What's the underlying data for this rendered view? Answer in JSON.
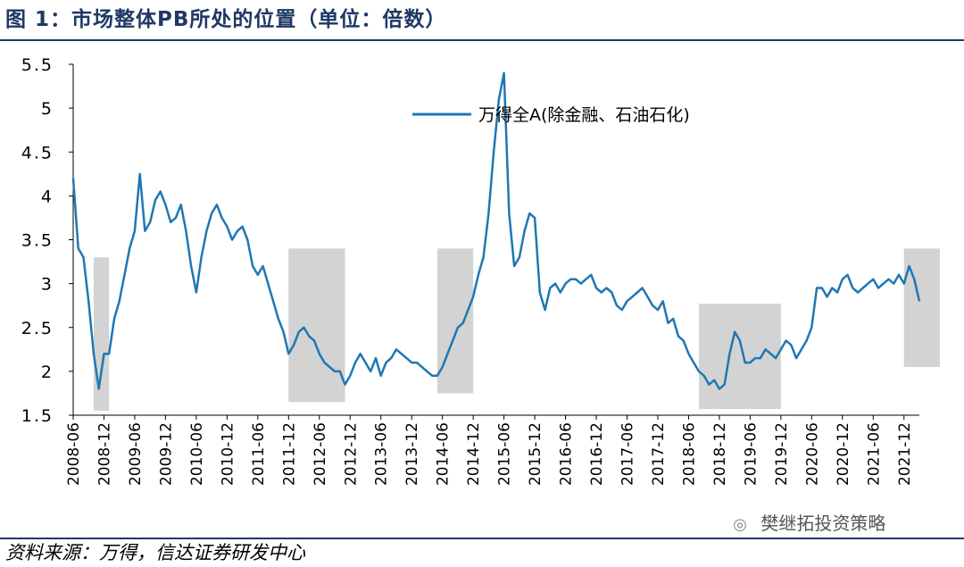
{
  "figure": {
    "title": "图 1：市场整体PB所处的位置（单位：倍数）",
    "source": "资料来源：万得，信达证券研发中心",
    "watermark": "樊继拓投资策略",
    "watermark_icon": "wechat-icon"
  },
  "colors": {
    "line": "#1f77b4",
    "shade": "#d3d3d3",
    "rule": "#1f3864"
  },
  "chart_data": {
    "type": "line",
    "title": "",
    "xlabel": "",
    "ylabel": "",
    "ylim": [
      1.5,
      5.5
    ],
    "yticks": [
      "5.5",
      "5",
      "4.5",
      "4",
      "3.5",
      "3",
      "2.5",
      "2",
      "1.5"
    ],
    "xticks": [
      "2008-06",
      "2008-12",
      "2009-06",
      "2009-12",
      "2010-06",
      "2010-12",
      "2011-06",
      "2011-12",
      "2012-06",
      "2012-12",
      "2013-06",
      "2013-12",
      "2014-06",
      "2014-12",
      "2015-06",
      "2015-12",
      "2016-06",
      "2016-12",
      "2017-06",
      "2017-12",
      "2018-06",
      "2018-12",
      "2019-06",
      "2019-12",
      "2020-06",
      "2020-12",
      "2021-06",
      "2021-12"
    ],
    "grid": false,
    "legend_position": "top-right",
    "series": [
      {
        "name": "万得全A(除金融、石油石化)",
        "points": [
          [
            "2008-06",
            4.2
          ],
          [
            "2008-07",
            3.4
          ],
          [
            "2008-08",
            3.3
          ],
          [
            "2008-09",
            2.8
          ],
          [
            "2008-10",
            2.2
          ],
          [
            "2008-11",
            1.8
          ],
          [
            "2008-12",
            2.2
          ],
          [
            "2009-01",
            2.2
          ],
          [
            "2009-02",
            2.6
          ],
          [
            "2009-03",
            2.8
          ],
          [
            "2009-04",
            3.1
          ],
          [
            "2009-05",
            3.4
          ],
          [
            "2009-06",
            3.6
          ],
          [
            "2009-07",
            4.25
          ],
          [
            "2009-08",
            3.6
          ],
          [
            "2009-09",
            3.7
          ],
          [
            "2009-10",
            3.95
          ],
          [
            "2009-11",
            4.05
          ],
          [
            "2009-12",
            3.9
          ],
          [
            "2010-01",
            3.7
          ],
          [
            "2010-02",
            3.75
          ],
          [
            "2010-03",
            3.9
          ],
          [
            "2010-04",
            3.6
          ],
          [
            "2010-05",
            3.2
          ],
          [
            "2010-06",
            2.9
          ],
          [
            "2010-07",
            3.3
          ],
          [
            "2010-08",
            3.6
          ],
          [
            "2010-09",
            3.8
          ],
          [
            "2010-10",
            3.9
          ],
          [
            "2010-11",
            3.75
          ],
          [
            "2010-12",
            3.65
          ],
          [
            "2011-01",
            3.5
          ],
          [
            "2011-02",
            3.6
          ],
          [
            "2011-03",
            3.65
          ],
          [
            "2011-04",
            3.5
          ],
          [
            "2011-05",
            3.2
          ],
          [
            "2011-06",
            3.1
          ],
          [
            "2011-07",
            3.2
          ],
          [
            "2011-08",
            3.0
          ],
          [
            "2011-09",
            2.8
          ],
          [
            "2011-10",
            2.6
          ],
          [
            "2011-11",
            2.45
          ],
          [
            "2011-12",
            2.2
          ],
          [
            "2012-01",
            2.3
          ],
          [
            "2012-02",
            2.45
          ],
          [
            "2012-03",
            2.5
          ],
          [
            "2012-04",
            2.4
          ],
          [
            "2012-05",
            2.35
          ],
          [
            "2012-06",
            2.2
          ],
          [
            "2012-07",
            2.1
          ],
          [
            "2012-08",
            2.05
          ],
          [
            "2012-09",
            2.0
          ],
          [
            "2012-10",
            2.0
          ],
          [
            "2012-11",
            1.85
          ],
          [
            "2012-12",
            1.95
          ],
          [
            "2013-01",
            2.1
          ],
          [
            "2013-02",
            2.2
          ],
          [
            "2013-03",
            2.1
          ],
          [
            "2013-04",
            2.0
          ],
          [
            "2013-05",
            2.15
          ],
          [
            "2013-06",
            1.95
          ],
          [
            "2013-07",
            2.1
          ],
          [
            "2013-08",
            2.15
          ],
          [
            "2013-09",
            2.25
          ],
          [
            "2013-10",
            2.2
          ],
          [
            "2013-11",
            2.15
          ],
          [
            "2013-12",
            2.1
          ],
          [
            "2014-01",
            2.1
          ],
          [
            "2014-02",
            2.05
          ],
          [
            "2014-03",
            2.0
          ],
          [
            "2014-04",
            1.95
          ],
          [
            "2014-05",
            1.95
          ],
          [
            "2014-06",
            2.05
          ],
          [
            "2014-07",
            2.2
          ],
          [
            "2014-08",
            2.35
          ],
          [
            "2014-09",
            2.5
          ],
          [
            "2014-10",
            2.55
          ],
          [
            "2014-11",
            2.7
          ],
          [
            "2014-12",
            2.85
          ],
          [
            "2015-01",
            3.1
          ],
          [
            "2015-02",
            3.3
          ],
          [
            "2015-03",
            3.8
          ],
          [
            "2015-04",
            4.5
          ],
          [
            "2015-05",
            5.1
          ],
          [
            "2015-06",
            5.4
          ],
          [
            "2015-07",
            3.8
          ],
          [
            "2015-08",
            3.2
          ],
          [
            "2015-09",
            3.3
          ],
          [
            "2015-10",
            3.6
          ],
          [
            "2015-11",
            3.8
          ],
          [
            "2015-12",
            3.75
          ],
          [
            "2016-01",
            2.9
          ],
          [
            "2016-02",
            2.7
          ],
          [
            "2016-03",
            2.95
          ],
          [
            "2016-04",
            3.0
          ],
          [
            "2016-05",
            2.9
          ],
          [
            "2016-06",
            3.0
          ],
          [
            "2016-07",
            3.05
          ],
          [
            "2016-08",
            3.05
          ],
          [
            "2016-09",
            3.0
          ],
          [
            "2016-10",
            3.05
          ],
          [
            "2016-11",
            3.1
          ],
          [
            "2016-12",
            2.95
          ],
          [
            "2017-01",
            2.9
          ],
          [
            "2017-02",
            2.95
          ],
          [
            "2017-03",
            2.9
          ],
          [
            "2017-04",
            2.75
          ],
          [
            "2017-05",
            2.7
          ],
          [
            "2017-06",
            2.8
          ],
          [
            "2017-07",
            2.85
          ],
          [
            "2017-08",
            2.9
          ],
          [
            "2017-09",
            2.95
          ],
          [
            "2017-10",
            2.85
          ],
          [
            "2017-11",
            2.75
          ],
          [
            "2017-12",
            2.7
          ],
          [
            "2018-01",
            2.8
          ],
          [
            "2018-02",
            2.55
          ],
          [
            "2018-03",
            2.6
          ],
          [
            "2018-04",
            2.4
          ],
          [
            "2018-05",
            2.35
          ],
          [
            "2018-06",
            2.2
          ],
          [
            "2018-07",
            2.1
          ],
          [
            "2018-08",
            2.0
          ],
          [
            "2018-09",
            1.95
          ],
          [
            "2018-10",
            1.85
          ],
          [
            "2018-11",
            1.9
          ],
          [
            "2018-12",
            1.8
          ],
          [
            "2019-01",
            1.85
          ],
          [
            "2019-02",
            2.2
          ],
          [
            "2019-03",
            2.45
          ],
          [
            "2019-04",
            2.35
          ],
          [
            "2019-05",
            2.1
          ],
          [
            "2019-06",
            2.1
          ],
          [
            "2019-07",
            2.15
          ],
          [
            "2019-08",
            2.15
          ],
          [
            "2019-09",
            2.25
          ],
          [
            "2019-10",
            2.2
          ],
          [
            "2019-11",
            2.15
          ],
          [
            "2019-12",
            2.25
          ],
          [
            "2020-01",
            2.35
          ],
          [
            "2020-02",
            2.3
          ],
          [
            "2020-03",
            2.15
          ],
          [
            "2020-04",
            2.25
          ],
          [
            "2020-05",
            2.35
          ],
          [
            "2020-06",
            2.5
          ],
          [
            "2020-07",
            2.95
          ],
          [
            "2020-08",
            2.95
          ],
          [
            "2020-09",
            2.85
          ],
          [
            "2020-10",
            2.95
          ],
          [
            "2020-11",
            2.9
          ],
          [
            "2020-12",
            3.05
          ],
          [
            "2021-01",
            3.1
          ],
          [
            "2021-02",
            2.95
          ],
          [
            "2021-03",
            2.9
          ],
          [
            "2021-04",
            2.95
          ],
          [
            "2021-05",
            3.0
          ],
          [
            "2021-06",
            3.05
          ],
          [
            "2021-07",
            2.95
          ],
          [
            "2021-08",
            3.0
          ],
          [
            "2021-09",
            3.05
          ],
          [
            "2021-10",
            3.0
          ],
          [
            "2021-11",
            3.1
          ],
          [
            "2021-12",
            3.0
          ],
          [
            "2022-01",
            3.2
          ],
          [
            "2022-02",
            3.05
          ],
          [
            "2022-03",
            2.8
          ]
        ]
      }
    ],
    "shaded_periods": [
      {
        "from": "2008-10",
        "to": "2009-01",
        "y": [
          1.55,
          3.3
        ]
      },
      {
        "from": "2011-12",
        "to": "2012-11",
        "y": [
          1.65,
          3.4
        ]
      },
      {
        "from": "2014-05",
        "to": "2014-12",
        "y": [
          1.75,
          3.4
        ]
      },
      {
        "from": "2018-08",
        "to": "2019-12",
        "y": [
          1.57,
          2.77
        ]
      },
      {
        "from": "2021-12",
        "to": "2022-07",
        "y": [
          2.05,
          3.4
        ]
      }
    ]
  }
}
